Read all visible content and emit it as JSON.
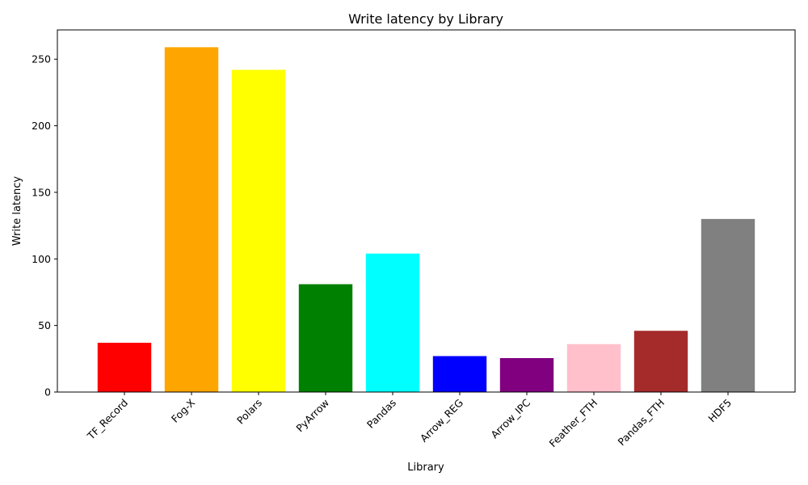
{
  "chart_data": {
    "type": "bar",
    "title": "Write latency by Library",
    "xlabel": "Library",
    "ylabel": "Write latency",
    "categories": [
      "TF_Record",
      "Fog-X",
      "Polars",
      "PyArrow",
      "Pandas",
      "Arrow_REG",
      "Arrow_IPC",
      "Feather_FTH",
      "Pandas_FTH",
      "HDF5"
    ],
    "values": [
      37,
      259,
      242,
      81,
      104,
      27,
      25.5,
      36,
      46,
      130
    ],
    "colors": [
      "#ff0000",
      "#ffa500",
      "#ffff00",
      "#008000",
      "#00ffff",
      "#0000ff",
      "#800080",
      "#ffc0cb",
      "#a52a2a",
      "#808080"
    ],
    "ylim": [
      0,
      272
    ],
    "yticks": [
      0,
      50,
      100,
      150,
      200,
      250
    ],
    "xtick_rotation": 45,
    "grid": false,
    "legend": "none"
  }
}
